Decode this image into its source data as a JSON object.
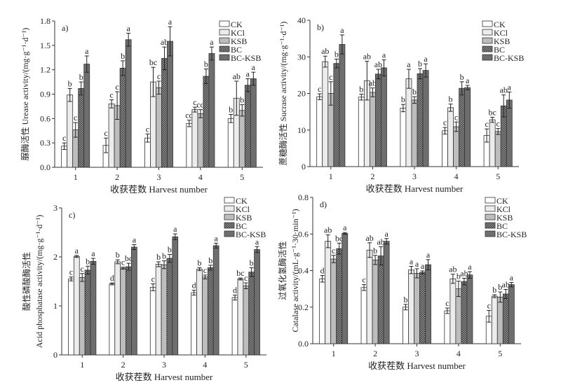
{
  "chart_data": [
    {
      "type": "bar",
      "panel_label": "a)",
      "ylabel": [
        "脲酶活性 Urease activity/(mg·g⁻¹·d⁻¹)"
      ],
      "xlabel": "收获茬数 Harvest number",
      "categories": [
        "1",
        "2",
        "3",
        "4",
        "5"
      ],
      "ylim": [
        0,
        1.8
      ],
      "yticks": [
        "0.0",
        "0.3",
        "0.6",
        "0.9",
        "1.2",
        "1.5",
        "1.8"
      ],
      "ytick_values": [
        0,
        0.3,
        0.6,
        0.9,
        1.2,
        1.5,
        1.8
      ],
      "legend_position": "top-right",
      "series": [
        {
          "name": "CK",
          "values": [
            0.26,
            0.27,
            0.36,
            0.54,
            0.6
          ],
          "errors": [
            0.04,
            0.09,
            0.05,
            0.04,
            0.05
          ],
          "letters": [
            "c",
            "c",
            "c",
            "cd",
            "b"
          ]
        },
        {
          "name": "KCl",
          "values": [
            0.89,
            0.78,
            1.05,
            0.71,
            0.85
          ],
          "errors": [
            0.08,
            0.05,
            0.18,
            0.03,
            0.21
          ],
          "letters": [
            "b",
            "c",
            "bc",
            "c",
            "ab"
          ]
        },
        {
          "name": "KSB",
          "values": [
            0.46,
            0.76,
            0.98,
            0.66,
            0.7
          ],
          "errors": [
            0.09,
            0.17,
            0.08,
            0.05,
            0.07
          ],
          "letters": [
            "c",
            "c",
            "c",
            "cd",
            "b"
          ]
        },
        {
          "name": "BC",
          "values": [
            0.97,
            1.22,
            1.34,
            1.12,
            1.01
          ],
          "errors": [
            0.08,
            0.09,
            0.14,
            0.09,
            0.08
          ],
          "letters": [
            "b",
            "b",
            "ab",
            "b",
            "a"
          ]
        },
        {
          "name": "BC-KSB",
          "values": [
            1.27,
            1.57,
            1.55,
            1.4,
            1.09
          ],
          "errors": [
            0.1,
            0.08,
            0.18,
            0.08,
            0.08
          ],
          "letters": [
            "a",
            "a",
            "a",
            "a",
            "a"
          ]
        }
      ]
    },
    {
      "type": "bar",
      "panel_label": "b)",
      "ylabel": [
        "蔗糖酶活性 Sucrase activity/(mg·g⁻¹·d⁻¹)"
      ],
      "xlabel": "收获茬数 Harvest number",
      "categories": [
        "1",
        "2",
        "3",
        "4",
        "5"
      ],
      "ylim": [
        0,
        40
      ],
      "yticks": [
        "0",
        "10",
        "20",
        "30",
        "40"
      ],
      "ytick_values": [
        0,
        10,
        20,
        30,
        40
      ],
      "legend_position": "top-right",
      "series": [
        {
          "name": "CK",
          "values": [
            19.1,
            19.0,
            16.0,
            9.8,
            8.5
          ],
          "errors": [
            0.8,
            0.8,
            1.0,
            0.9,
            1.8
          ],
          "letters": [
            "c",
            "b",
            "b",
            "c",
            "c"
          ]
        },
        {
          "name": "KCl",
          "values": [
            28.7,
            23.5,
            24.0,
            16.1,
            12.8
          ],
          "errors": [
            1.5,
            5.3,
            2.6,
            1.0,
            0.7
          ],
          "letters": [
            "ab",
            "ab",
            "a",
            "b",
            "bc"
          ]
        },
        {
          "name": "KSB",
          "values": [
            20.0,
            20.3,
            18.2,
            10.9,
            9.6
          ],
          "errors": [
            3.2,
            1.2,
            0.9,
            1.3,
            0.8
          ],
          "letters": [
            "c",
            "ab",
            "b",
            "c",
            "c"
          ]
        },
        {
          "name": "BC",
          "values": [
            28.2,
            25.3,
            25.4,
            21.4,
            16.6
          ],
          "errors": [
            1.2,
            1.3,
            1.4,
            1.8,
            3.0
          ],
          "letters": [
            "b",
            "ab",
            "b",
            "b",
            "ab"
          ]
        },
        {
          "name": "BC-KSB",
          "values": [
            33.4,
            27.0,
            26.3,
            21.6,
            18.2
          ],
          "errors": [
            2.6,
            2.2,
            1.8,
            0.6,
            2.2
          ],
          "letters": [
            "a",
            "a",
            "a",
            "a",
            "a"
          ]
        }
      ]
    },
    {
      "type": "bar",
      "panel_label": "c)",
      "ylabel": [
        "酸性磷酸酶活性",
        "Acid phosphatase activity/(mg·g⁻¹·d⁻¹)"
      ],
      "xlabel": "收获茬数 Harvest number",
      "categories": [
        "1",
        "2",
        "3",
        "4",
        "5"
      ],
      "ylim": [
        0,
        3
      ],
      "yticks": [
        "0",
        "1",
        "2",
        "3"
      ],
      "ytick_values": [
        0,
        1,
        2,
        3
      ],
      "legend_position": "top-right",
      "series": [
        {
          "name": "CK",
          "values": [
            1.55,
            1.45,
            1.38,
            1.27,
            1.17
          ],
          "errors": [
            0.04,
            0.02,
            0.07,
            0.05,
            0.05
          ],
          "letters": [
            "c",
            "d",
            "c",
            "d",
            "d"
          ]
        },
        {
          "name": "KCl",
          "values": [
            2.01,
            1.9,
            1.85,
            1.75,
            1.55
          ],
          "errors": [
            0.02,
            0.04,
            0.05,
            0.03,
            0.02
          ],
          "letters": [
            "a",
            "b",
            "b",
            "b",
            "bc"
          ]
        },
        {
          "name": "KSB",
          "values": [
            1.58,
            1.77,
            1.84,
            1.59,
            1.41
          ],
          "errors": [
            0.08,
            0.02,
            0.08,
            0.04,
            0.06
          ],
          "letters": [
            "c",
            "c",
            "b",
            "c",
            "c"
          ]
        },
        {
          "name": "BC",
          "values": [
            1.73,
            1.8,
            1.97,
            1.78,
            1.69
          ],
          "errors": [
            0.08,
            0.07,
            0.08,
            0.05,
            0.09
          ],
          "letters": [
            "b",
            "bc",
            "b",
            "b",
            "b"
          ]
        },
        {
          "name": "BC-KSB",
          "values": [
            1.91,
            2.2,
            2.41,
            2.23,
            2.15
          ],
          "errors": [
            0.06,
            0.05,
            0.06,
            0.05,
            0.06
          ],
          "letters": [
            "a",
            "a",
            "a",
            "a",
            "a"
          ]
        }
      ]
    },
    {
      "type": "bar",
      "panel_label": "d)",
      "ylabel": [
        "过氧化氢酶活性",
        "Catalase activity/(mL·g⁻¹·30·min⁻¹)"
      ],
      "xlabel": "收获茬数 Harvest number",
      "categories": [
        "1",
        "2",
        "3",
        "4",
        "5"
      ],
      "ylim": [
        0,
        0.8
      ],
      "yticks": [
        "0.0",
        "0.2",
        "0.4",
        "0.6",
        "0.8"
      ],
      "ytick_values": [
        0,
        0.2,
        0.4,
        0.6,
        0.8
      ],
      "legend_position": "top-right",
      "series": [
        {
          "name": "CK",
          "values": [
            0.355,
            0.307,
            0.2,
            0.18,
            0.15
          ],
          "errors": [
            0.018,
            0.016,
            0.015,
            0.015,
            0.032
          ],
          "letters": [
            "d",
            "c",
            "b",
            "c",
            "c"
          ]
        },
        {
          "name": "KCl",
          "values": [
            0.56,
            0.512,
            0.403,
            0.355,
            0.26
          ],
          "errors": [
            0.035,
            0.04,
            0.02,
            0.025,
            0.008
          ],
          "letters": [
            "ab",
            "ab",
            "a",
            "ab",
            "b"
          ]
        },
        {
          "name": "KSB",
          "values": [
            0.463,
            0.458,
            0.385,
            0.3,
            0.255
          ],
          "errors": [
            0.02,
            0.025,
            0.025,
            0.042,
            0.028
          ],
          "letters": [
            "c",
            "b",
            "a",
            "b",
            "b"
          ]
        },
        {
          "name": "BC",
          "values": [
            0.52,
            0.48,
            0.39,
            0.34,
            0.272
          ],
          "errors": [
            0.03,
            0.05,
            0.008,
            0.018,
            0.025
          ],
          "letters": [
            "bc",
            "ab",
            "a",
            "ab",
            "ab"
          ]
        },
        {
          "name": "BC-KSB",
          "values": [
            0.603,
            0.56,
            0.432,
            0.376,
            0.323
          ],
          "errors": [
            0.005,
            0.015,
            0.028,
            0.018,
            0.012
          ],
          "letters": [
            "a",
            "a",
            "a",
            "a",
            "a"
          ]
        }
      ]
    }
  ],
  "series_colors": [
    "#ffffff",
    "#ececec",
    "#bdbdbd",
    "#8a8a8a",
    "#6e6e6e"
  ]
}
